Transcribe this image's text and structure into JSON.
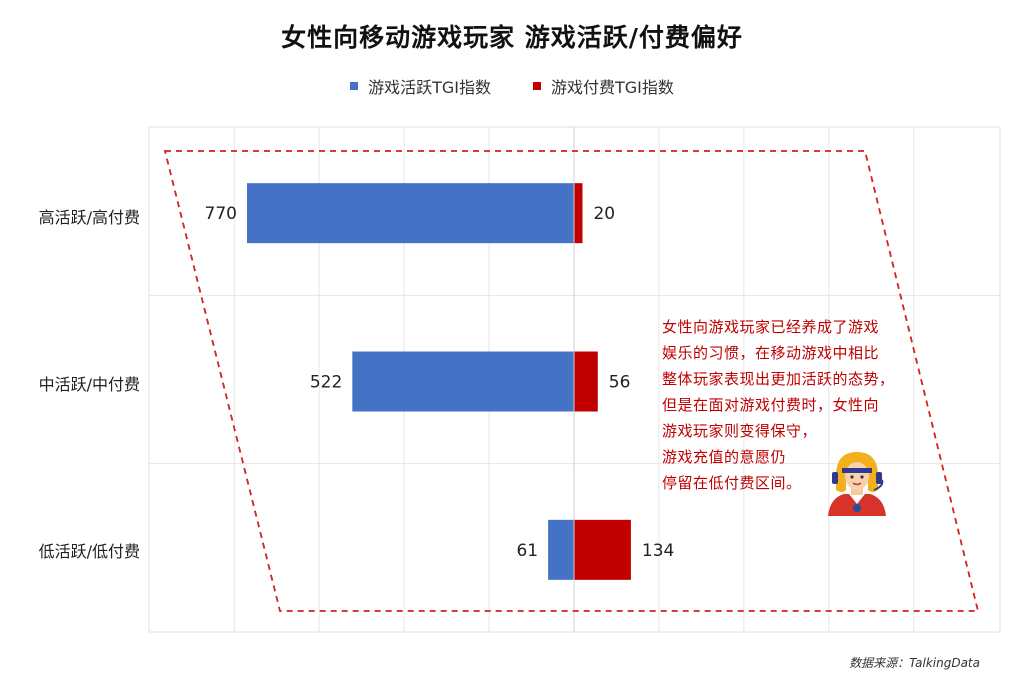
{
  "title": "女性向移动游戏玩家  游戏活跃/付费偏好",
  "legend": [
    {
      "name": "游戏活跃TGI指数",
      "color": "#4472c4"
    },
    {
      "name": "游戏付费TGI指数",
      "color": "#c00000"
    }
  ],
  "chart_data": {
    "type": "bar",
    "orientation": "horizontal-diverging",
    "categories": [
      "高活跃/高付费",
      "中活跃/中付费",
      "低活跃/低付费"
    ],
    "series": [
      {
        "name": "游戏活跃TGI指数",
        "values": [
          770,
          522,
          61
        ],
        "color": "#4472c4"
      },
      {
        "name": "游戏付费TGI指数",
        "values": [
          20,
          56,
          134
        ],
        "color": "#c00000"
      }
    ],
    "grid": true,
    "legend_position": "top"
  },
  "annotation": {
    "lines": [
      "女性向游戏玩家已经养成了游戏",
      "娱乐的习惯，在移动游戏中相比",
      "整体玩家表现出更加活跃的态势，",
      "但是在面对游戏付费时，女性向",
      "游戏玩家则变得保守，",
      "游戏充值的意愿仍",
      "停留在低付费区间。"
    ],
    "icon": "female-gamer-avatar-icon"
  },
  "source": "数据来源：TalkingData"
}
